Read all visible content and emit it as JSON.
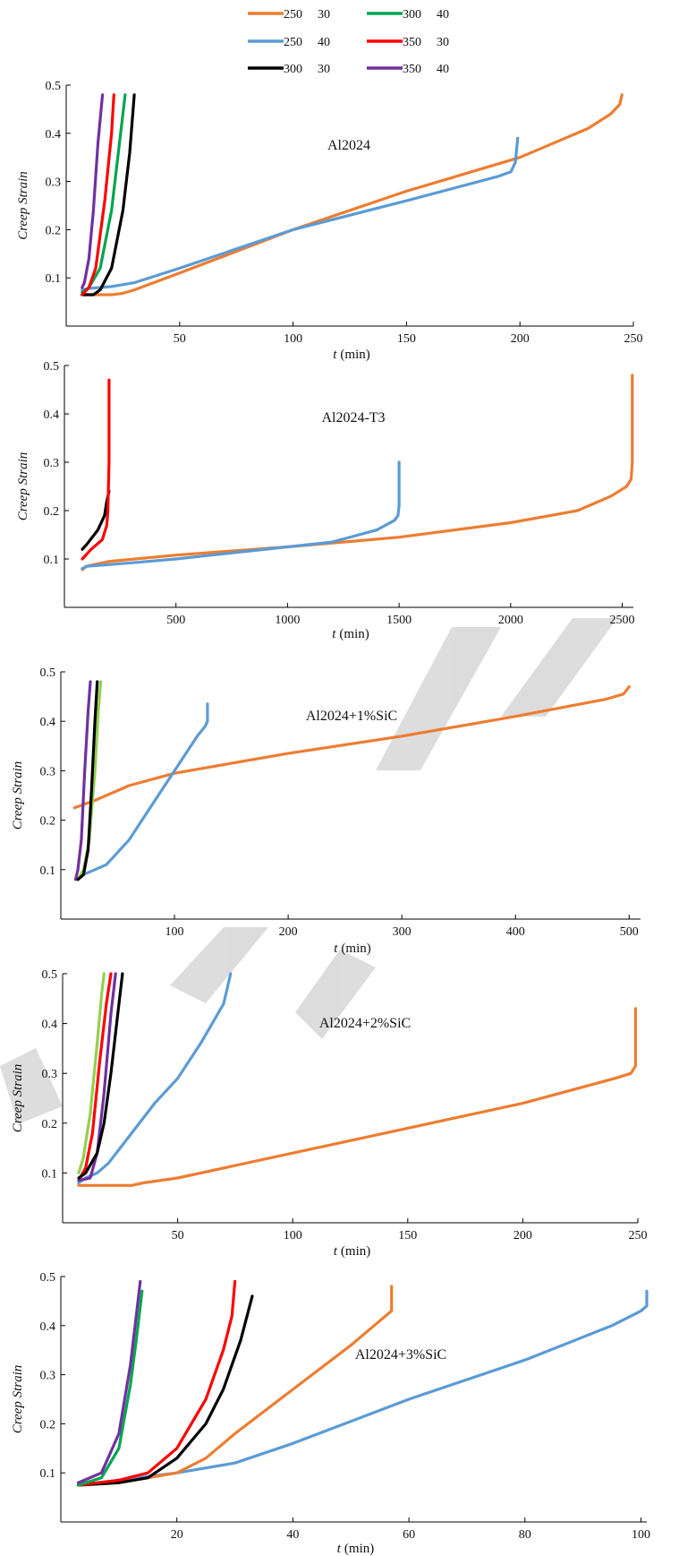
{
  "series_colors": {
    "250_30": "#ED7D31",
    "250_40": "#5B9BD5",
    "300_30": "#000000",
    "300_40": "#00A550",
    "350_30": "#FF0000",
    "350_40": "#7030A0",
    "light_green": "#92D050"
  },
  "legend": {
    "items": [
      {
        "key": "250_30",
        "temp": "250",
        "stress": "30"
      },
      {
        "key": "300_40",
        "temp": "300",
        "stress": "40"
      },
      {
        "key": "250_40",
        "temp": "250",
        "stress": "40"
      },
      {
        "key": "350_30",
        "temp": "350",
        "stress": "30"
      },
      {
        "key": "300_30",
        "temp": "300",
        "stress": "30"
      },
      {
        "key": "350_40",
        "temp": "350",
        "stress": "40"
      }
    ]
  },
  "chart_data": [
    {
      "type": "line",
      "title": "Al2024",
      "xlabel_var": "t",
      "xlabel_unit": "(min)",
      "ylabel": "Creep Strain",
      "xlim": [
        0,
        250
      ],
      "ylim": [
        0,
        0.5
      ],
      "xticks": [
        50,
        100,
        150,
        200,
        250
      ],
      "yticks": [
        0.1,
        0.2,
        0.3,
        0.4,
        0.5
      ],
      "series": [
        {
          "key": "250_30",
          "x": [
            7,
            10,
            15,
            20,
            25,
            30,
            50,
            100,
            150,
            200,
            230,
            240,
            244,
            245
          ],
          "y": [
            0.065,
            0.065,
            0.065,
            0.065,
            0.068,
            0.075,
            0.11,
            0.2,
            0.28,
            0.35,
            0.41,
            0.44,
            0.46,
            0.48
          ]
        },
        {
          "key": "250_40",
          "x": [
            7,
            10,
            20,
            30,
            50,
            100,
            150,
            190,
            196,
            198,
            199
          ],
          "y": [
            0.075,
            0.078,
            0.082,
            0.09,
            0.12,
            0.2,
            0.26,
            0.31,
            0.32,
            0.34,
            0.39
          ]
        },
        {
          "key": "300_30",
          "x": [
            7,
            12,
            15,
            20,
            25,
            28,
            30
          ],
          "y": [
            0.065,
            0.065,
            0.075,
            0.12,
            0.24,
            0.36,
            0.48
          ]
        },
        {
          "key": "300_40",
          "x": [
            7,
            10,
            15,
            20,
            23,
            26
          ],
          "y": [
            0.07,
            0.08,
            0.12,
            0.24,
            0.36,
            0.48
          ]
        },
        {
          "key": "350_30",
          "x": [
            7,
            10,
            13,
            17,
            20,
            21
          ],
          "y": [
            0.065,
            0.08,
            0.12,
            0.26,
            0.4,
            0.48
          ]
        },
        {
          "key": "350_40",
          "x": [
            7,
            8,
            10,
            12,
            14,
            16
          ],
          "y": [
            0.08,
            0.09,
            0.14,
            0.24,
            0.38,
            0.48
          ]
        }
      ]
    },
    {
      "type": "line",
      "title": "Al2024-T3",
      "xlabel_var": "t",
      "xlabel_unit": "(min)",
      "ylabel": "Creep Strain",
      "xlim": [
        0,
        2550
      ],
      "ylim": [
        0,
        0.5
      ],
      "xticks": [
        500,
        1000,
        1500,
        2000,
        2500
      ],
      "yticks": [
        0.1,
        0.2,
        0.3,
        0.4,
        0.5
      ],
      "series": [
        {
          "key": "250_30",
          "x": [
            80,
            100,
            200,
            500,
            1000,
            1500,
            2000,
            2300,
            2450,
            2520,
            2540,
            2545,
            2545
          ],
          "y": [
            0.078,
            0.085,
            0.095,
            0.108,
            0.125,
            0.145,
            0.175,
            0.2,
            0.23,
            0.25,
            0.265,
            0.3,
            0.48
          ]
        },
        {
          "key": "250_40",
          "x": [
            80,
            100,
            300,
            500,
            800,
            1000,
            1200,
            1400,
            1480,
            1495,
            1500,
            1500
          ],
          "y": [
            0.08,
            0.085,
            0.092,
            0.1,
            0.115,
            0.125,
            0.135,
            0.16,
            0.18,
            0.19,
            0.21,
            0.3
          ]
        },
        {
          "key": "300_30",
          "x": [
            80,
            100,
            150,
            180,
            190,
            200
          ],
          "y": [
            0.12,
            0.13,
            0.16,
            0.19,
            0.22,
            0.24
          ]
        },
        {
          "key": "350_30",
          "x": [
            80,
            120,
            170,
            190,
            195,
            200,
            200
          ],
          "y": [
            0.1,
            0.12,
            0.14,
            0.17,
            0.2,
            0.3,
            0.47
          ]
        }
      ]
    },
    {
      "type": "line",
      "title": "Al2024+1%SiC",
      "xlabel_var": "t",
      "xlabel_unit": "(min)",
      "ylabel": "Creep Strain",
      "xlim": [
        0,
        510
      ],
      "ylim": [
        0,
        0.5
      ],
      "xticks": [
        100,
        200,
        300,
        400,
        500
      ],
      "yticks": [
        0.1,
        0.2,
        0.3,
        0.4,
        0.5
      ],
      "series": [
        {
          "key": "250_30",
          "x": [
            12,
            30,
            60,
            100,
            150,
            200,
            300,
            400,
            480,
            495,
            500
          ],
          "y": [
            0.225,
            0.24,
            0.27,
            0.295,
            0.315,
            0.335,
            0.37,
            0.41,
            0.445,
            0.455,
            0.47
          ]
        },
        {
          "key": "250_40",
          "x": [
            15,
            20,
            30,
            40,
            60,
            80,
            100,
            120,
            127,
            129,
            129
          ],
          "y": [
            0.08,
            0.09,
            0.1,
            0.11,
            0.16,
            0.23,
            0.3,
            0.37,
            0.39,
            0.4,
            0.435
          ]
        },
        {
          "key": "light_green",
          "x": [
            15,
            20,
            25,
            30,
            33,
            35
          ],
          "y": [
            0.08,
            0.1,
            0.16,
            0.3,
            0.42,
            0.48
          ]
        },
        {
          "key": "350_40",
          "x": [
            13,
            15,
            18,
            21,
            24,
            26
          ],
          "y": [
            0.08,
            0.1,
            0.16,
            0.3,
            0.42,
            0.48
          ]
        },
        {
          "key": "300_30",
          "x": [
            15,
            20,
            24,
            27,
            30,
            32
          ],
          "y": [
            0.08,
            0.09,
            0.14,
            0.26,
            0.4,
            0.48
          ]
        }
      ]
    },
    {
      "type": "line",
      "title": "Al2024+2%SiC",
      "xlabel_var": "t",
      "xlabel_unit": "(min)",
      "ylabel": "Creep Strain",
      "xlim": [
        0,
        250
      ],
      "ylim": [
        0,
        0.5
      ],
      "xticks": [
        50,
        100,
        150,
        200,
        250
      ],
      "yticks": [
        0.1,
        0.2,
        0.3,
        0.4,
        0.5
      ],
      "series": [
        {
          "key": "250_30",
          "x": [
            7,
            15,
            25,
            30,
            35,
            50,
            100,
            150,
            200,
            240,
            247,
            249,
            249
          ],
          "y": [
            0.075,
            0.075,
            0.075,
            0.075,
            0.08,
            0.09,
            0.14,
            0.19,
            0.24,
            0.29,
            0.3,
            0.315,
            0.43
          ]
        },
        {
          "key": "250_40",
          "x": [
            7,
            10,
            15,
            20,
            30,
            40,
            50,
            60,
            65,
            70,
            73
          ],
          "y": [
            0.08,
            0.09,
            0.1,
            0.12,
            0.18,
            0.24,
            0.29,
            0.36,
            0.4,
            0.44,
            0.5
          ]
        },
        {
          "key": "light_green",
          "x": [
            7,
            9,
            12,
            15,
            17,
            18
          ],
          "y": [
            0.1,
            0.13,
            0.22,
            0.36,
            0.46,
            0.5
          ]
        },
        {
          "key": "350_30",
          "x": [
            7,
            10,
            13,
            16,
            19,
            21
          ],
          "y": [
            0.085,
            0.11,
            0.18,
            0.32,
            0.44,
            0.5
          ]
        },
        {
          "key": "350_40",
          "x": [
            7,
            12,
            15,
            18,
            21,
            23
          ],
          "y": [
            0.085,
            0.09,
            0.14,
            0.26,
            0.42,
            0.5
          ]
        },
        {
          "key": "300_30",
          "x": [
            7,
            10,
            15,
            18,
            21,
            24,
            26
          ],
          "y": [
            0.09,
            0.1,
            0.14,
            0.2,
            0.3,
            0.42,
            0.5
          ]
        }
      ]
    },
    {
      "type": "line",
      "title": "Al2024+3%SiC",
      "xlabel_var": "t",
      "xlabel_unit": "(min)",
      "ylabel": "Creep Strain",
      "xlim": [
        0,
        101
      ],
      "ylim": [
        0,
        0.5
      ],
      "xticks": [
        20,
        40,
        60,
        80,
        100
      ],
      "yticks": [
        0.1,
        0.2,
        0.3,
        0.4,
        0.5
      ],
      "series": [
        {
          "key": "250_40",
          "x": [
            3,
            10,
            20,
            30,
            40,
            60,
            80,
            95,
            100,
            101,
            101
          ],
          "y": [
            0.075,
            0.085,
            0.1,
            0.12,
            0.16,
            0.25,
            0.33,
            0.4,
            0.43,
            0.44,
            0.47
          ]
        },
        {
          "key": "250_30",
          "x": [
            3,
            10,
            15,
            20,
            25,
            30,
            40,
            50,
            55,
            57,
            57
          ],
          "y": [
            0.075,
            0.08,
            0.09,
            0.1,
            0.13,
            0.18,
            0.27,
            0.36,
            0.41,
            0.43,
            0.48
          ]
        },
        {
          "key": "300_30",
          "x": [
            3,
            10,
            15,
            20,
            25,
            28,
            31,
            33
          ],
          "y": [
            0.075,
            0.08,
            0.09,
            0.13,
            0.2,
            0.27,
            0.37,
            0.46
          ]
        },
        {
          "key": "350_30",
          "x": [
            3,
            10,
            15,
            20,
            25,
            28,
            29.5,
            30
          ],
          "y": [
            0.075,
            0.085,
            0.1,
            0.15,
            0.25,
            0.35,
            0.42,
            0.49
          ]
        },
        {
          "key": "300_40",
          "x": [
            3,
            7,
            10,
            12,
            13,
            14
          ],
          "y": [
            0.075,
            0.09,
            0.15,
            0.28,
            0.37,
            0.47
          ]
        },
        {
          "key": "350_40",
          "x": [
            3,
            7,
            10,
            12,
            13,
            13.7
          ],
          "y": [
            0.08,
            0.1,
            0.18,
            0.32,
            0.42,
            0.49
          ]
        }
      ]
    }
  ]
}
